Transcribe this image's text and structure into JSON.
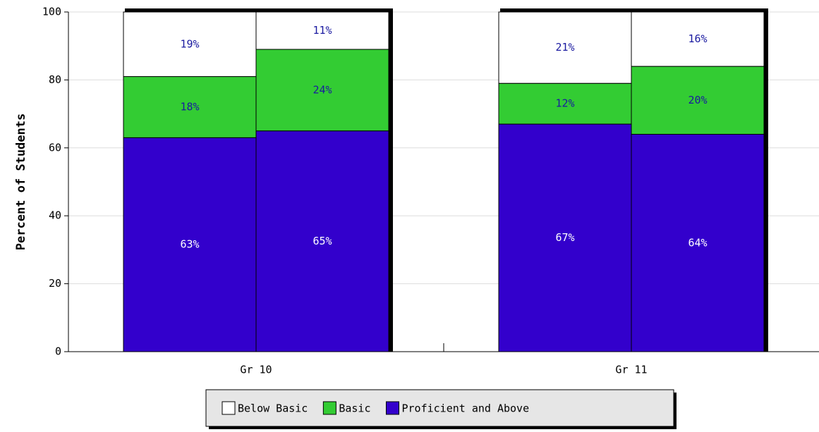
{
  "chart_data": {
    "type": "grouped-stacked-bar",
    "y_label": "Percent of Students",
    "categories": [
      "Gr 10",
      "Gr 11"
    ],
    "series": [
      {
        "name": "Below Basic",
        "color": "#ffffff",
        "label_color": "#1a1aa0",
        "values": [
          [
            19,
            11
          ],
          [
            21,
            16
          ]
        ],
        "value_labels": [
          [
            "19%",
            "11%"
          ],
          [
            "21%",
            "16%"
          ]
        ]
      },
      {
        "name": "Basic",
        "color": "#33cc33",
        "label_color": "#1a1aa0",
        "values": [
          [
            18,
            24
          ],
          [
            12,
            20
          ]
        ],
        "value_labels": [
          [
            "18%",
            "24%"
          ],
          [
            "12%",
            "20%"
          ]
        ]
      },
      {
        "name": "Proficient and Above",
        "color": "#3300cc",
        "label_color": "#ffffff",
        "values": [
          [
            63,
            65
          ],
          [
            67,
            64
          ]
        ],
        "value_labels": [
          [
            "63%",
            "65%"
          ],
          [
            "67%",
            "64%"
          ]
        ]
      }
    ],
    "stack_order": [
      2,
      1,
      0
    ],
    "ylim": [
      0,
      100
    ],
    "yticks": [
      0,
      20,
      40,
      60,
      80,
      100
    ],
    "grid": true
  }
}
